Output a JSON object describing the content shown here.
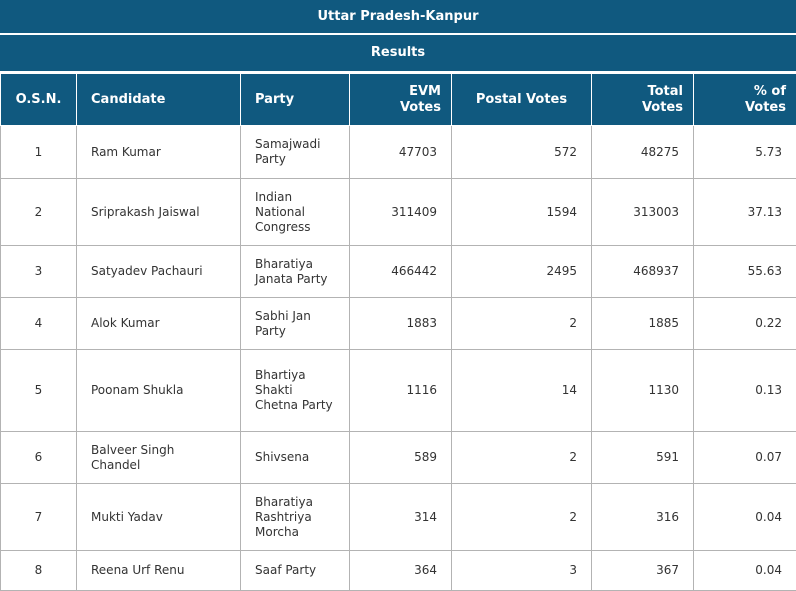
{
  "header": {
    "title": "Uttar Pradesh-Kanpur",
    "subtitle": "Results"
  },
  "columns": [
    "O.S.N.",
    "Candidate",
    "Party",
    "EVM Votes",
    "Postal Votes",
    "Total Votes",
    "% of Votes"
  ],
  "rows": [
    {
      "osn": "1",
      "candidate": "Ram Kumar",
      "party": "Samajwadi Party",
      "evm": "47703",
      "postal": "572",
      "total": "48275",
      "pct": "5.73"
    },
    {
      "osn": "2",
      "candidate": "Sriprakash Jaiswal",
      "party": "Indian National Congress",
      "evm": "311409",
      "postal": "1594",
      "total": "313003",
      "pct": "37.13"
    },
    {
      "osn": "3",
      "candidate": "Satyadev Pachauri",
      "party": "Bharatiya Janata Party",
      "evm": "466442",
      "postal": "2495",
      "total": "468937",
      "pct": "55.63"
    },
    {
      "osn": "4",
      "candidate": "Alok Kumar",
      "party": "Sabhi Jan Party",
      "evm": "1883",
      "postal": "2",
      "total": "1885",
      "pct": "0.22"
    },
    {
      "osn": "5",
      "candidate": "Poonam Shukla",
      "party": "Bhartiya Shakti Chetna Party",
      "evm": "1116",
      "postal": "14",
      "total": "1130",
      "pct": "0.13"
    },
    {
      "osn": "6",
      "candidate": "Balveer Singh Chandel",
      "party": "Shivsena",
      "evm": "589",
      "postal": "2",
      "total": "591",
      "pct": "0.07"
    },
    {
      "osn": "7",
      "candidate": "Mukti Yadav",
      "party": "Bharatiya Rashtriya Morcha",
      "evm": "314",
      "postal": "2",
      "total": "316",
      "pct": "0.04"
    },
    {
      "osn": "8",
      "candidate": "Reena Urf Renu",
      "party": "Saaf Party",
      "evm": "364",
      "postal": "3",
      "total": "367",
      "pct": "0.04"
    }
  ]
}
